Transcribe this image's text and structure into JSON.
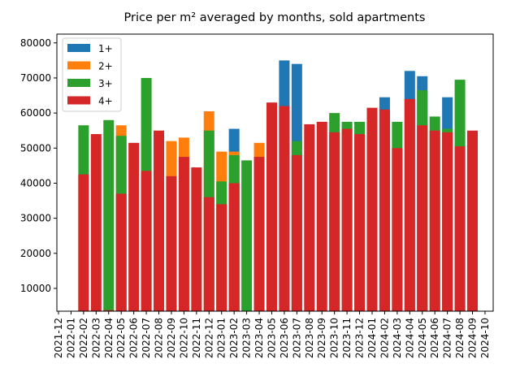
{
  "chart_data": {
    "type": "bar",
    "title": "Price per m² averaged by months, sold apartments",
    "categories": [
      "2021-12",
      "2022-01",
      "2022-02",
      "2022-03",
      "2022-04",
      "2022-05",
      "2022-06",
      "2022-07",
      "2022-08",
      "2022-09",
      "2022-10",
      "2022-11",
      "2022-12",
      "2023-01",
      "2023-02",
      "2023-03",
      "2023-04",
      "2023-05",
      "2023-06",
      "2023-07",
      "2023-08",
      "2023-09",
      "2023-10",
      "2023-11",
      "2023-12",
      "2024-01",
      "2024-02",
      "2024-03",
      "2024-04",
      "2024-05",
      "2024-06",
      "2024-07",
      "2024-08",
      "2024-09",
      "2024-10"
    ],
    "series": [
      {
        "name": "1+",
        "color": "#1f77b4",
        "values": [
          null,
          null,
          null,
          null,
          null,
          null,
          null,
          null,
          null,
          null,
          null,
          null,
          null,
          null,
          55500,
          null,
          null,
          null,
          75000,
          74000,
          null,
          null,
          null,
          null,
          null,
          null,
          64500,
          null,
          72000,
          70500,
          null,
          64500,
          null,
          null,
          null
        ]
      },
      {
        "name": "2+",
        "color": "#ff7f0e",
        "values": [
          null,
          null,
          null,
          null,
          null,
          56500,
          null,
          null,
          null,
          52000,
          53000,
          null,
          60500,
          49000,
          49000,
          null,
          51500,
          null,
          null,
          null,
          null,
          null,
          null,
          null,
          null,
          null,
          null,
          null,
          null,
          null,
          null,
          null,
          null,
          null,
          null
        ]
      },
      {
        "name": "3+",
        "color": "#2ca02c",
        "values": [
          null,
          null,
          56500,
          null,
          58000,
          53500,
          null,
          70000,
          null,
          null,
          null,
          null,
          55000,
          40500,
          48000,
          46500,
          null,
          null,
          null,
          52000,
          null,
          null,
          60000,
          57500,
          57500,
          null,
          null,
          57500,
          null,
          66500,
          59000,
          55500,
          69500,
          null,
          null
        ]
      },
      {
        "name": "4+",
        "color": "#d62728",
        "values": [
          null,
          null,
          42500,
          54000,
          3800,
          37000,
          51500,
          43500,
          55000,
          42000,
          47500,
          44500,
          36000,
          34000,
          40000,
          null,
          47500,
          63000,
          62000,
          48000,
          56800,
          57500,
          54500,
          55500,
          54000,
          61500,
          61000,
          50000,
          64000,
          56500,
          55000,
          54500,
          50500,
          55000,
          null
        ]
      }
    ],
    "ylim": [
      3500,
      82500
    ],
    "yticks": [
      10000,
      20000,
      30000,
      40000,
      50000,
      60000,
      70000,
      80000
    ],
    "legend": "upper left"
  }
}
